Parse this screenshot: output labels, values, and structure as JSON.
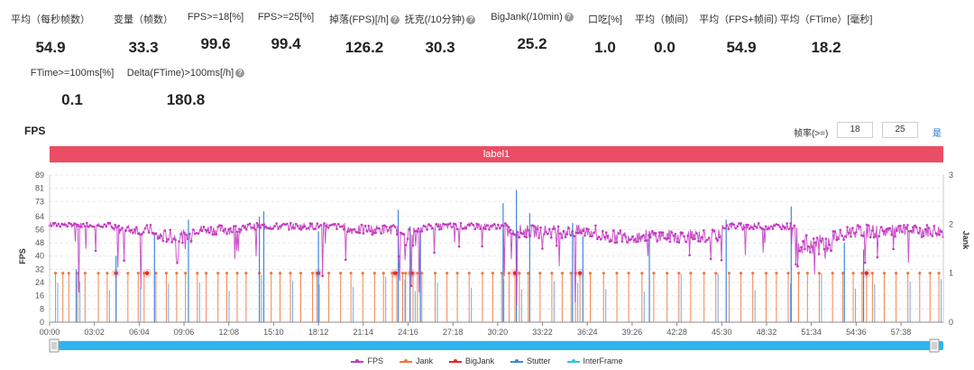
{
  "stats": [
    {
      "label": "平均（每秒帧数）",
      "value": "54.9",
      "help": false
    },
    {
      "label": "变量（帧数）",
      "value": "33.3",
      "help": false
    },
    {
      "label": "FPS>=18[%]",
      "value": "99.6",
      "help": false
    },
    {
      "label": "FPS>=25[%]",
      "value": "99.4",
      "help": false
    },
    {
      "label": "掉落(FPS)[/h]",
      "value": "126.2",
      "help": true
    },
    {
      "label": "抚克(/10分钟)",
      "value": "30.3",
      "help": true
    },
    {
      "label": "BigJank(/10min)",
      "value": "25.2",
      "help": true
    },
    {
      "label": "口吃[%]",
      "value": "1.0",
      "help": false
    },
    {
      "label": "平均（帧间）",
      "value": "0.0",
      "help": false
    },
    {
      "label": "平均（FPS+帧间）",
      "value": "54.9",
      "help": false
    },
    {
      "label": "平均（FTime）[毫秒]",
      "value": "18.2",
      "help": false
    },
    {
      "label": "FTime>=100ms[%]",
      "value": "0.1",
      "help": false
    },
    {
      "label": "Delta(FTime)>100ms[/h]",
      "value": "180.8",
      "help": true
    }
  ],
  "help_glyph": "?",
  "chart_title": "FPS",
  "threshold": {
    "label": "帧率(>=)",
    "value1": "18",
    "value2": "25",
    "confirm": "是"
  },
  "label_bar": "label1",
  "colors": {
    "fps": "#c23bc0",
    "jank": "#f0783c",
    "bigjank": "#e02a2a",
    "stutter": "#3d86de",
    "interframe": "#2cc6e6",
    "label_bar": "#ea4d65",
    "slider": "#2fb3ef"
  },
  "chart_data": {
    "type": "line",
    "y_left": {
      "label": "FPS",
      "ticks": [
        0,
        8,
        16,
        24,
        32,
        40,
        48,
        56,
        64,
        73,
        81,
        89
      ],
      "range": [
        0,
        89
      ]
    },
    "y_right": {
      "label": "Jank",
      "ticks": [
        0,
        1,
        2,
        3
      ],
      "range": [
        0,
        3
      ]
    },
    "x_ticks": [
      "00:00",
      "03:02",
      "06:04",
      "09:06",
      "12:08",
      "15:10",
      "18:12",
      "21:14",
      "24:16",
      "27:18",
      "30:20",
      "33:22",
      "36:24",
      "39:26",
      "42:28",
      "45:30",
      "48:32",
      "51:34",
      "54:36",
      "57:38"
    ],
    "x_range_minutes": [
      0,
      60.5
    ],
    "fps_segments": [
      {
        "start": 0.0,
        "end": 4.2,
        "level": 59,
        "noise": 1.5
      },
      {
        "start": 4.2,
        "end": 7.0,
        "level": 56,
        "noise": 3
      },
      {
        "start": 7.0,
        "end": 9.6,
        "level": 52,
        "noise": 4
      },
      {
        "start": 9.6,
        "end": 13.0,
        "level": 56,
        "noise": 3
      },
      {
        "start": 13.0,
        "end": 20.0,
        "level": 58,
        "noise": 2
      },
      {
        "start": 20.0,
        "end": 24.0,
        "level": 56,
        "noise": 3
      },
      {
        "start": 24.0,
        "end": 25.2,
        "level": 52,
        "noise": 6
      },
      {
        "start": 25.2,
        "end": 31.0,
        "level": 58,
        "noise": 2
      },
      {
        "start": 31.0,
        "end": 37.0,
        "level": 55,
        "noise": 4
      },
      {
        "start": 37.0,
        "end": 45.5,
        "level": 52,
        "noise": 4
      },
      {
        "start": 45.5,
        "end": 50.6,
        "level": 58,
        "noise": 2
      },
      {
        "start": 50.6,
        "end": 53.0,
        "level": 47,
        "noise": 6
      },
      {
        "start": 53.0,
        "end": 54.0,
        "level": 52,
        "noise": 4
      },
      {
        "start": 54.0,
        "end": 60.5,
        "level": 55,
        "noise": 4
      }
    ],
    "fps_dips": [
      [
        2.0,
        18
      ],
      [
        4.6,
        33
      ],
      [
        6.2,
        20
      ],
      [
        8.6,
        38
      ],
      [
        14.0,
        40
      ],
      [
        18.5,
        28
      ],
      [
        23.7,
        25
      ],
      [
        24.5,
        22
      ],
      [
        25.0,
        18
      ],
      [
        30.8,
        28
      ],
      [
        31.6,
        10
      ],
      [
        35.6,
        12
      ],
      [
        40.5,
        40
      ],
      [
        48.3,
        42
      ],
      [
        50.5,
        35
      ],
      [
        55.2,
        36
      ]
    ],
    "jank_events": [
      0.4,
      0.9,
      1.3,
      1.9,
      2.4,
      3.3,
      3.9,
      4.5,
      5.3,
      6.0,
      6.4,
      7.2,
      7.9,
      8.6,
      9.2,
      10.0,
      10.6,
      11.4,
      12.0,
      12.7,
      13.3,
      14.2,
      15.0,
      15.6,
      16.3,
      17.0,
      17.8,
      18.1,
      18.9,
      19.7,
      20.4,
      21.2,
      22.0,
      22.6,
      23.2,
      23.5,
      23.9,
      24.1,
      24.4,
      24.6,
      24.9,
      25.2,
      26.1,
      26.9,
      27.6,
      28.4,
      29.3,
      30.0,
      30.6,
      31.1,
      31.5,
      31.8,
      32.4,
      33.2,
      34.0,
      34.7,
      35.3,
      35.6,
      35.9,
      36.6,
      37.5,
      38.4,
      39.2,
      40.1,
      40.9,
      41.8,
      42.6,
      43.4,
      44.3,
      45.1,
      46.0,
      46.8,
      47.6,
      48.5,
      49.2,
      50.0,
      50.7,
      51.3,
      52.1,
      53.0,
      53.7,
      54.4,
      55.0,
      55.3,
      55.7,
      56.5,
      57.3,
      58.1,
      58.9,
      59.6,
      60.2
    ],
    "bigjank_markers": [
      4.5,
      6.6,
      18.2,
      23.4,
      24.5,
      31.5,
      35.9,
      55.3
    ],
    "stutter_spikes": [
      [
        1.8,
        32
      ],
      [
        4.5,
        40
      ],
      [
        7.1,
        53
      ],
      [
        9.4,
        62
      ],
      [
        14.2,
        64
      ],
      [
        14.5,
        67
      ],
      [
        18.2,
        55
      ],
      [
        23.6,
        68
      ],
      [
        24.4,
        58
      ],
      [
        25.1,
        55
      ],
      [
        30.7,
        72
      ],
      [
        31.6,
        80
      ],
      [
        32.5,
        66
      ],
      [
        35.4,
        60
      ],
      [
        36.1,
        52
      ],
      [
        40.6,
        55
      ],
      [
        45.8,
        62
      ],
      [
        50.2,
        70
      ],
      [
        53.8,
        48
      ],
      [
        55.1,
        44
      ]
    ],
    "series": [
      {
        "name": "FPS"
      },
      {
        "name": "Jank"
      },
      {
        "name": "BigJank"
      },
      {
        "name": "Stutter"
      },
      {
        "name": "InterFrame"
      }
    ]
  }
}
